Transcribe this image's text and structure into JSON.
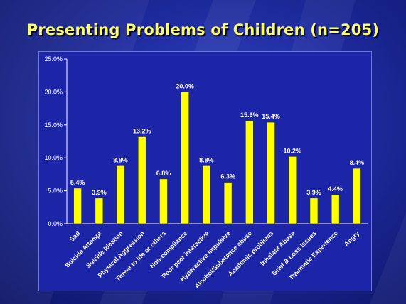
{
  "slide": {
    "title": "Presenting Problems of Children (n=205)",
    "background_color": "#1d2a9c",
    "title_color": "#ffff66"
  },
  "chart_data": {
    "type": "bar",
    "title": "Presenting Problems of Children (n=205)",
    "xlabel": "",
    "ylabel": "",
    "ylim": [
      0,
      25
    ],
    "yticks": [
      "0.0%",
      "5.0%",
      "10.0%",
      "15.0%",
      "20.0%",
      "25.0%"
    ],
    "grid": false,
    "legend": "none",
    "bar_color": "#ffff00",
    "categories": [
      "Sad",
      "Suicide Attempt",
      "Suicide Ideation",
      "Physical Aggression",
      "Threat to life or others",
      "Non-compliance",
      "Poor peer interactive",
      "Hyperactive-impulsive",
      "Alcohol/Substance abuse",
      "Academic problems",
      "Inhalant Abuse",
      "Grief & Loss Issues",
      "Traumatic Experience",
      "Angry"
    ],
    "values": [
      5.4,
      3.9,
      8.8,
      13.2,
      6.8,
      20.0,
      8.8,
      6.3,
      15.6,
      15.4,
      10.2,
      3.9,
      4.4,
      8.4
    ],
    "data_labels": [
      "5.4%",
      "3.9%",
      "8.8%",
      "13.2%",
      "6.8%",
      "20.0%",
      "8.8%",
      "6.3%",
      "15.6%",
      "15.4%",
      "10.2%",
      "3.9%",
      "4.4%",
      "8.4%"
    ]
  }
}
